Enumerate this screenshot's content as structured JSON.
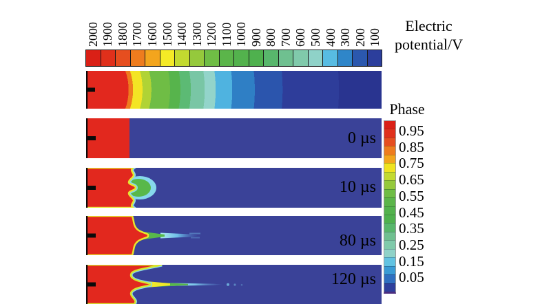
{
  "figure": {
    "background": "#ffffff",
    "potential_colorbar": {
      "title_lines": [
        "Electric",
        "potential/V"
      ],
      "tick_labels": [
        "2000",
        "1900",
        "1800",
        "1700",
        "1600",
        "1500",
        "1400",
        "1300",
        "1200",
        "1100",
        "1000",
        "900",
        "800",
        "700",
        "600",
        "500",
        "400",
        "300",
        "200",
        "100"
      ],
      "segment_colors": [
        "#da2016",
        "#e0301b",
        "#e64e1f",
        "#ee7c1e",
        "#f3a51d",
        "#f5ea26",
        "#c3da30",
        "#95c93c",
        "#6fbd45",
        "#5bb54a",
        "#53b24d",
        "#4fb14e",
        "#58b76c",
        "#6fc090",
        "#80caab",
        "#8fd2c8",
        "#58bce2",
        "#2f86c9",
        "#2b58ae",
        "#2c3e9c"
      ]
    },
    "phase_colorbar": {
      "title": "Phase",
      "tick_labels": [
        "0.95",
        "0.85",
        "0.75",
        "0.65",
        "0.55",
        "0.45",
        "0.35",
        "0.25",
        "0.15",
        "0.05"
      ],
      "segment_colors": [
        "#da2016",
        "#e0301b",
        "#e64e1f",
        "#ee7c1e",
        "#f3a51d",
        "#f0e31f",
        "#c3da30",
        "#95c93c",
        "#6fbd45",
        "#5bb54a",
        "#53b24d",
        "#4fb14e",
        "#58b76c",
        "#6fc090",
        "#80caab",
        "#8fd2c8",
        "#62c3e2",
        "#3a9bd5",
        "#2f6fc0",
        "#2e3f9c"
      ]
    },
    "key_colors": {
      "phase_liquid_red": "#e2281e",
      "phase_vapor_navy": "#3a4298",
      "interface_yellow": "#e8e62c",
      "interface_green": "#58b84a",
      "interface_cyan": "#86d8ec",
      "electrode_black": "#0a0a0a"
    },
    "panels": [
      {
        "name": "potential-field",
        "time_label": ""
      },
      {
        "name": "phase-0us",
        "time_label": "0 µs"
      },
      {
        "name": "phase-10us",
        "time_label": "10 µs"
      },
      {
        "name": "phase-80us",
        "time_label": "80 µs"
      },
      {
        "name": "phase-120us",
        "time_label": "120 µs"
      }
    ]
  },
  "chart_data": [
    {
      "type": "heatmap",
      "title": "Electric potential/V",
      "colorbar": {
        "orientation": "horizontal",
        "position": "top",
        "ticks": [
          2000,
          1900,
          1800,
          1700,
          1600,
          1500,
          1400,
          1300,
          1200,
          1100,
          1000,
          900,
          800,
          700,
          600,
          500,
          400,
          300,
          200,
          100
        ],
        "range": [
          100,
          2000
        ],
        "unit": "V",
        "palette": "red (2000 V) through orange, yellow, green, teal, cyan to dark blue (100 V), 20 discrete bands"
      },
      "panel_description": "Potential field around needle electrode at left: concentric bands decay from ~2000 V (red, left ~15% of channel) to ~100 V (dark navy, right end)"
    },
    {
      "type": "heatmap",
      "title": "Phase",
      "colorbar": {
        "orientation": "vertical",
        "position": "right",
        "ticks": [
          0.95,
          0.85,
          0.75,
          0.65,
          0.55,
          0.45,
          0.35,
          0.25,
          0.15,
          0.05
        ],
        "range": [
          0.05,
          0.95
        ],
        "palette": "red (phase ~1) at top through yellow, green, cyan to dark navy (phase ~0) at bottom"
      },
      "panels": [
        {
          "time": "0 µs",
          "description": "flat vertical interface; red phase (~1) fills left ~15% of channel, dark navy (~0) elsewhere"
        },
        {
          "time": "10 µs",
          "description": "interface becomes wavy; small green/cyan protrusion appears at channel mid-height, tip near x~0.21 of channel length"
        },
        {
          "time": "80 µs",
          "description": "pointed streamer finger grows from mid-height; red tip near x~0.20, green wedge to x~0.27, cyan mixed-phase streak fading to x~0.35"
        },
        {
          "time": "120 µs",
          "description": "streamer elongates: red cusp tip near x~0.21, yellow then green taper to x~0.34, faint cyan trail and droplets to x~0.50"
        }
      ]
    }
  ]
}
